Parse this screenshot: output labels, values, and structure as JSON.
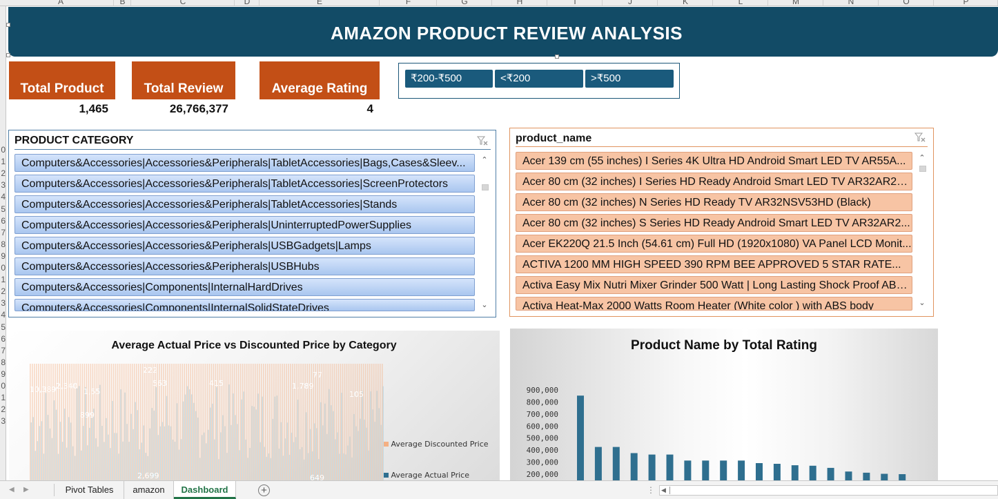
{
  "sheet": {
    "columns": [
      "A",
      "B",
      "C",
      "D",
      "E",
      "F",
      "G",
      "H",
      "I",
      "J",
      "K",
      "L",
      "M",
      "N",
      "O",
      "P"
    ],
    "rows": [
      "0",
      "1",
      "2",
      "3",
      "4",
      "5",
      "6",
      "7",
      "8",
      "9",
      "0",
      "1",
      "2",
      "3",
      "4",
      "5",
      "6",
      "7",
      "8",
      "9",
      "0",
      "1",
      "2",
      "3"
    ]
  },
  "banner": {
    "title": "AMAZON PRODUCT REVIEW ANALYSIS"
  },
  "kpis": [
    {
      "label": "Total Product",
      "value": "1,465"
    },
    {
      "label": "Total Review",
      "value": "26,766,377"
    },
    {
      "label": "Average Rating",
      "value": "4"
    }
  ],
  "price_slicer": {
    "buttons": [
      "₹200-₹500",
      "<₹200",
      ">₹500"
    ]
  },
  "category_slicer": {
    "title": "PRODUCT CATEGORY",
    "items": [
      "Computers&Accessories|Accessories&Peripherals|TabletAccessories|Bags,Cases&Sleev...",
      "Computers&Accessories|Accessories&Peripherals|TabletAccessories|ScreenProtectors",
      "Computers&Accessories|Accessories&Peripherals|TabletAccessories|Stands",
      "Computers&Accessories|Accessories&Peripherals|UninterruptedPowerSupplies",
      "Computers&Accessories|Accessories&Peripherals|USBGadgets|Lamps",
      "Computers&Accessories|Accessories&Peripherals|USBHubs",
      "Computers&Accessories|Components|InternalHardDrives",
      "Computers&Accessories|Components|InternalSolidStateDrives"
    ]
  },
  "product_slicer": {
    "title": "product_name",
    "items": [
      "Acer 139 cm (55 inches) I Series 4K Ultra HD Android Smart LED TV AR55A...",
      "Acer 80 cm (32 inches) I Series HD Ready Android Smart LED TV AR32AR28...",
      "Acer 80 cm (32 inches) N Series HD Ready TV AR32NSV53HD (Black)",
      "Acer 80 cm (32 inches) S Series HD Ready Android Smart LED TV AR32AR2...",
      "Acer EK220Q 21.5 Inch (54.61 cm) Full HD (1920x1080) VA Panel LCD Monit...",
      "ACTIVA 1200 MM HIGH SPEED 390 RPM BEE APPROVED 5 STAR RATE...",
      "Activa Easy Mix Nutri Mixer Grinder 500 Watt | Long Lasting Shock Proof ABS ...",
      "Activa Heat-Max 2000 Watts Room Heater (White color ) with ABS body"
    ]
  },
  "chart_data": [
    {
      "type": "bar",
      "title": "Average Actual Price vs Discounted Price by Category",
      "series": [
        {
          "name": "Average Discounted Price",
          "color": "#f4b083"
        },
        {
          "name": "Average Actual Price",
          "color": "#2f6f8f"
        }
      ],
      "visible_labels": [
        "10,389",
        "2,340",
        "1,55",
        "222",
        "563",
        "415",
        "77",
        "899",
        "1,789",
        "105",
        "2,699",
        "649"
      ]
    },
    {
      "type": "bar",
      "title": "Product Name by Total Rating",
      "color": "#2f6f8f",
      "yticks": [
        "900,000",
        "800,000",
        "700,000",
        "600,000",
        "500,000",
        "400,000",
        "300,000",
        "200,000"
      ],
      "ylim": [
        0,
        900000
      ],
      "values": [
        853000,
        426000,
        426000,
        375000,
        363000,
        363000,
        313000,
        313000,
        313000,
        313000,
        292000,
        286000,
        274000,
        270000,
        252000,
        222000,
        212000,
        203000,
        200000
      ]
    }
  ],
  "tabs": [
    "Pivot Tables",
    "amazon",
    "Dashboard"
  ],
  "active_tab": "Dashboard"
}
